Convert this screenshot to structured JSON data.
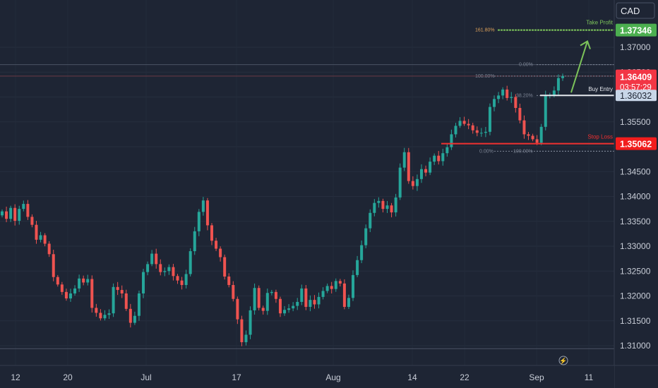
{
  "chart_data": {
    "type": "candlestick",
    "currency": "CAD",
    "y_ticks": [
      "1.37000",
      "1.36500",
      "1.36000",
      "1.35500",
      "1.35000",
      "1.34500",
      "1.34000",
      "1.33500",
      "1.33000",
      "1.32500",
      "1.32000",
      "1.31500",
      "1.31000"
    ],
    "x_ticks": [
      "12",
      "20",
      "Jul",
      "17",
      "Aug",
      "14",
      "22",
      "Sep",
      "11"
    ],
    "ylim": [
      1.3084,
      1.3782
    ],
    "levels": {
      "take_profit": {
        "label": "Take Profit",
        "price": 1.37346,
        "price_label": "1.37346",
        "fib_label": "161.80%"
      },
      "current": {
        "price": 1.36409,
        "price_label": "1.36409",
        "countdown": "03:57:29"
      },
      "buy_entry": {
        "label": "Buy Entry",
        "price": 1.36032,
        "price_label": "1.36032"
      },
      "stop_loss": {
        "label": "Stop Loss",
        "price": 1.35062,
        "price_label": "1.35062"
      }
    },
    "fib_right": {
      "top": 1.3665,
      "bottom": 1.3491,
      "mid": 1.3603,
      "labels": [
        "0.00%",
        "38.20%",
        "100.00%"
      ]
    },
    "fib_left": {
      "top": 1.3642,
      "bottom": 1.3491,
      "labels": [
        "100.00%",
        "0.00%"
      ]
    },
    "horizontal_lines": [
      1.3665,
      1.3642,
      1.3094
    ],
    "close_prices": [
      1.337,
      1.3355,
      1.3377,
      1.3351,
      1.3375,
      1.3385,
      1.3359,
      1.3343,
      1.3313,
      1.3322,
      1.3305,
      1.3284,
      1.3238,
      1.3223,
      1.3208,
      1.3195,
      1.3205,
      1.3215,
      1.3235,
      1.3227,
      1.3234,
      1.3176,
      1.3166,
      1.3155,
      1.3162,
      1.3165,
      1.3218,
      1.3212,
      1.3205,
      1.3174,
      1.3146,
      1.316,
      1.3205,
      1.3248,
      1.3264,
      1.3285,
      1.3264,
      1.3248,
      1.325,
      1.3258,
      1.324,
      1.3231,
      1.3222,
      1.3244,
      1.329,
      1.333,
      1.3369,
      1.3392,
      1.3342,
      1.3311,
      1.3295,
      1.3278,
      1.3239,
      1.3222,
      1.3194,
      1.3153,
      1.3107,
      1.3122,
      1.3171,
      1.3216,
      1.3176,
      1.317,
      1.3206,
      1.3208,
      1.3194,
      1.3165,
      1.3172,
      1.3175,
      1.318,
      1.3188,
      1.3215,
      1.3178,
      1.3192,
      1.3183,
      1.3198,
      1.321,
      1.322,
      1.3214,
      1.323,
      1.3225,
      1.3178,
      1.3196,
      1.3242,
      1.3272,
      1.3302,
      1.3336,
      1.3367,
      1.3387,
      1.3391,
      1.3375,
      1.3382,
      1.3368,
      1.3398,
      1.3458,
      1.3489,
      1.3431,
      1.3421,
      1.3435,
      1.3455,
      1.3448,
      1.347,
      1.3482,
      1.3471,
      1.3487,
      1.3499,
      1.3525,
      1.3542,
      1.3552,
      1.3546,
      1.3543,
      1.3533,
      1.3528,
      1.3528,
      1.353,
      1.358,
      1.3596,
      1.3603,
      1.3615,
      1.3598,
      1.36,
      1.3578,
      1.3553,
      1.3525,
      1.3522,
      1.3515,
      1.3508,
      1.354,
      1.3604,
      1.3604,
      1.3613,
      1.3638,
      1.3642
    ],
    "projection_arrow": {
      "from": 1.3609,
      "to": 1.3712
    }
  }
}
